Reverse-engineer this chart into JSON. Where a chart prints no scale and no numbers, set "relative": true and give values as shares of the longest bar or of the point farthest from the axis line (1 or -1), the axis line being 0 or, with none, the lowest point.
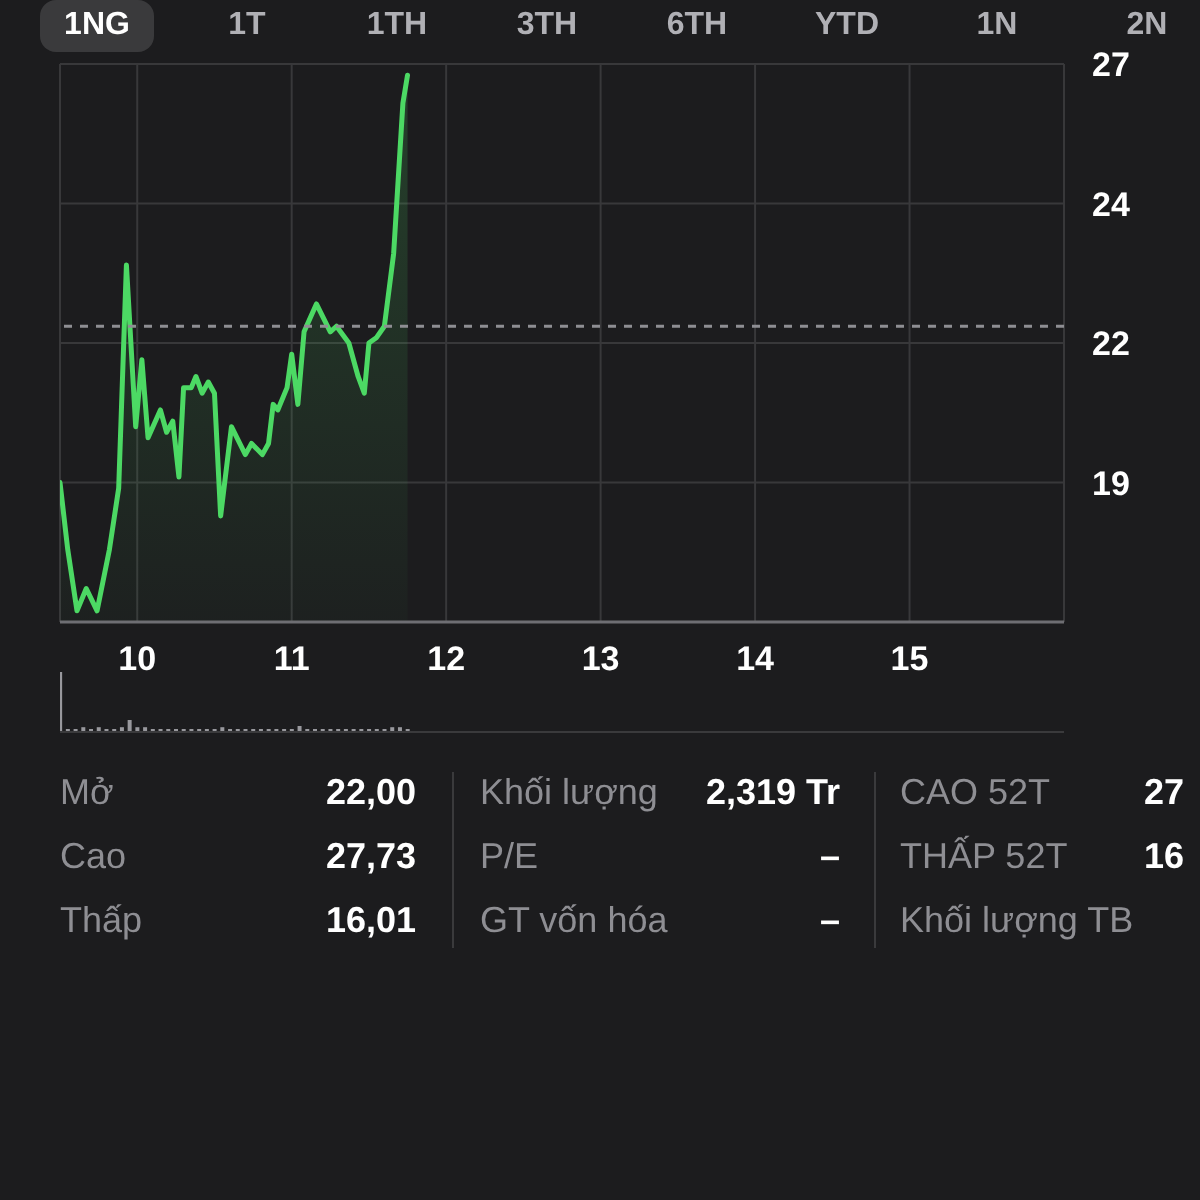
{
  "chart_data": [
    {
      "type": "other",
      "annotations": [
        "1NG",
        "1T",
        "1TH",
        "3TH",
        "6TH",
        "YTD",
        "1N",
        "2N"
      ]
    },
    {
      "type": "area",
      "x": [
        9.5,
        9.55,
        9.61,
        9.67,
        9.74,
        9.82,
        9.88,
        9.93,
        9.99,
        10.03,
        10.07,
        10.15,
        10.19,
        10.23,
        10.27,
        10.3,
        10.35,
        10.38,
        10.42,
        10.46,
        10.5,
        10.54,
        10.61,
        10.7,
        10.74,
        10.81,
        10.85,
        10.88,
        10.91,
        10.97,
        11.0,
        11.04,
        11.08,
        11.16,
        11.25,
        11.29,
        11.37,
        11.43,
        11.47,
        11.5,
        11.55,
        11.6,
        11.66,
        11.68,
        11.72,
        11.75
      ],
      "values": [
        19.2,
        18.0,
        16.9,
        17.3,
        16.9,
        18.0,
        19.1,
        23.1,
        20.2,
        21.4,
        20.0,
        20.5,
        20.1,
        20.3,
        19.3,
        20.9,
        20.9,
        21.1,
        20.8,
        21.0,
        20.8,
        18.6,
        20.2,
        19.7,
        19.9,
        19.7,
        19.9,
        20.6,
        20.5,
        20.9,
        21.5,
        20.6,
        21.9,
        22.4,
        21.9,
        22.0,
        21.7,
        21.1,
        20.8,
        21.7,
        21.8,
        22.0,
        23.3,
        24.2,
        26.0,
        26.5
      ],
      "color": "#4cd964",
      "xlim": [
        9.5,
        16
      ],
      "xticks": [
        10,
        11,
        12,
        13,
        14,
        15,
        {
          "value": 16,
          "label": null
        }
      ],
      "ylim": [
        16.7,
        26.7
      ],
      "yticks": [
        {
          "value": 19.2,
          "label": "19"
        },
        {
          "value": 21.7,
          "label": "22"
        },
        {
          "value": 24.2,
          "label": "24"
        },
        {
          "value": 26.7,
          "label": "27"
        }
      ],
      "grid": true,
      "ref_lines": [
        {
          "axis": "y",
          "value": 22.0,
          "color": "#8e8e93",
          "line_style": "dashed"
        }
      ]
    },
    {
      "type": "bar",
      "x": [
        9.5,
        9.55,
        9.6,
        9.65,
        9.7,
        9.75,
        9.8,
        9.85,
        9.9,
        9.95,
        10.0,
        10.05,
        10.1,
        10.15,
        10.2,
        10.25,
        10.3,
        10.35,
        10.4,
        10.45,
        10.5,
        10.55,
        10.6,
        10.65,
        10.7,
        10.75,
        10.8,
        10.85,
        10.9,
        10.95,
        11.0,
        11.05,
        11.1,
        11.15,
        11.2,
        11.25,
        11.3,
        11.35,
        11.4,
        11.45,
        11.5,
        11.55,
        11.6,
        11.65,
        11.7,
        11.75
      ],
      "values": [
        1,
        0.05,
        0.05,
        0.08,
        0.05,
        0.08,
        0.05,
        0.05,
        0.08,
        0.2,
        0.08,
        0.08,
        0.05,
        0.05,
        0.05,
        0.05,
        0.05,
        0.05,
        0.05,
        0.05,
        0.05,
        0.08,
        0.05,
        0.05,
        0.05,
        0.05,
        0.05,
        0.05,
        0.05,
        0.05,
        0.05,
        0.1,
        0.05,
        0.05,
        0.05,
        0.05,
        0.05,
        0.05,
        0.05,
        0.05,
        0.05,
        0.05,
        0.05,
        0.08,
        0.08,
        0.05
      ],
      "color": "#98989d",
      "relative": true,
      "xlim": [
        9.5,
        16
      ],
      "tick_labels": false
    },
    {
      "type": "other",
      "annotations": [
        "Mở",
        "22,00",
        "Khối lượng",
        "2,319 Tr",
        "CAO 52T",
        "27",
        "Cao",
        "27,73",
        "P/E",
        "–",
        "THẤP 52T",
        "16",
        "Thấp",
        "16,01",
        "GT vốn hóa",
        "–",
        "Khối lượng TB"
      ]
    }
  ]
}
